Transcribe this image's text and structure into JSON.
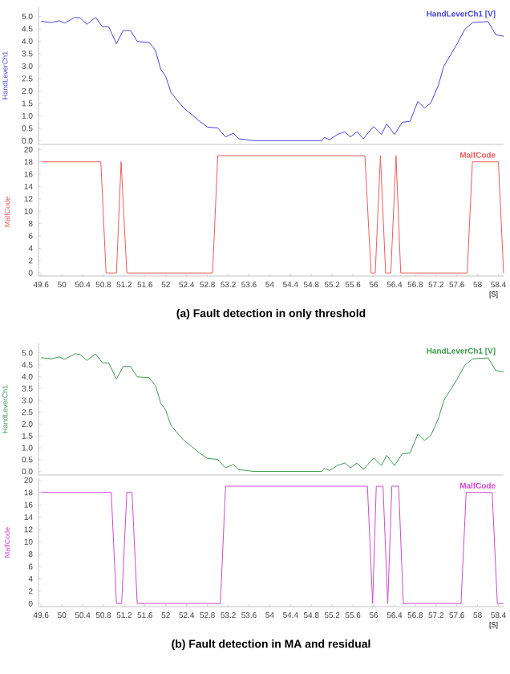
{
  "chart_data": [
    {
      "type": "line",
      "ylabel": "HandLeverCh1",
      "tick_labels": "y",
      "xlim": [
        49.55,
        58.5
      ],
      "ylim": [
        -0.15,
        5.4
      ],
      "yticks": [
        {
          "value": 0,
          "label": "0.0"
        },
        {
          "value": 0.5,
          "label": "0.5"
        },
        {
          "value": 1,
          "label": "1.0"
        },
        {
          "value": 1.5,
          "label": "1.5"
        },
        {
          "value": 2,
          "label": "2.0"
        },
        {
          "value": 2.5,
          "label": "2.5"
        },
        {
          "value": 3,
          "label": "3.0"
        },
        {
          "value": 3.5,
          "label": "3.5"
        },
        {
          "value": 4,
          "label": "4.0"
        },
        {
          "value": 4.5,
          "label": "4.5"
        },
        {
          "value": 5,
          "label": "5.0"
        }
      ],
      "x": [
        49.6,
        49.8,
        49.95,
        50.05,
        50.25,
        50.35,
        50.48,
        50.65,
        50.78,
        50.9,
        51.05,
        51.18,
        51.32,
        51.45,
        51.68,
        51.8,
        51.9,
        52.0,
        52.1,
        52.22,
        52.35,
        52.5,
        52.65,
        52.8,
        53.0,
        53.15,
        53.3,
        53.4,
        53.7,
        55.0,
        55.05,
        55.15,
        55.3,
        55.45,
        55.55,
        55.68,
        55.8,
        56.0,
        56.15,
        56.25,
        56.4,
        56.55,
        56.7,
        56.85,
        56.98,
        57.1,
        57.25,
        57.35,
        57.5,
        57.62,
        57.75,
        57.9,
        58.2,
        58.35,
        58.5
      ],
      "series": [
        {
          "name": "HandLeverCh1 [V]",
          "color": "#4444dd",
          "values": [
            4.8,
            4.75,
            4.83,
            4.73,
            4.96,
            4.94,
            4.68,
            4.96,
            4.58,
            4.58,
            3.9,
            4.43,
            4.43,
            3.99,
            3.95,
            3.63,
            2.89,
            2.57,
            1.94,
            1.62,
            1.31,
            1.05,
            0.78,
            0.55,
            0.51,
            0.15,
            0.3,
            0.08,
            0.0,
            0.0,
            0.13,
            0.04,
            0.25,
            0.36,
            0.15,
            0.36,
            0.08,
            0.57,
            0.25,
            0.68,
            0.25,
            0.74,
            0.78,
            1.58,
            1.31,
            1.52,
            2.26,
            3.0,
            3.52,
            3.95,
            4.47,
            4.75,
            4.79,
            4.26,
            4.2
          ]
        }
      ]
    },
    {
      "type": "line",
      "ylabel": "MalfCode",
      "xlabel": "[S]",
      "annotations": [
        "(a) Fault detection in only threshold"
      ],
      "xlim": [
        49.55,
        58.5
      ],
      "ylim": [
        -0.5,
        20.3
      ],
      "xticks": [
        49.6,
        50,
        50.4,
        50.8,
        51.2,
        51.6,
        52,
        52.4,
        52.8,
        53.2,
        53.6,
        54,
        54.4,
        54.8,
        55.2,
        55.6,
        56,
        56.4,
        56.8,
        57.2,
        57.6,
        58,
        58.4
      ],
      "yticks": [
        0,
        2,
        4,
        6,
        8,
        10,
        12,
        14,
        16,
        18,
        20
      ],
      "x": [
        49.6,
        50.75,
        50.85,
        51.05,
        51.14,
        51.25,
        52.9,
        53.0,
        55.83,
        55.95,
        56.03,
        56.13,
        56.23,
        56.33,
        56.43,
        56.52,
        57.8,
        57.9,
        58.4,
        58.5
      ],
      "series": [
        {
          "name": "MalfCode",
          "color": "#f05a5a",
          "values": [
            18,
            18,
            0,
            0,
            18,
            0,
            0,
            19,
            19,
            0,
            0,
            19,
            0,
            0,
            19,
            0,
            0,
            18,
            18,
            0
          ]
        }
      ]
    },
    {
      "type": "line",
      "ylabel": "HandLeverCh1",
      "tick_labels": "y",
      "xlim": [
        49.55,
        58.5
      ],
      "ylim": [
        -0.15,
        5.4
      ],
      "yticks": [
        {
          "value": 0,
          "label": "0.0"
        },
        {
          "value": 0.5,
          "label": "0.5"
        },
        {
          "value": 1,
          "label": "1.0"
        },
        {
          "value": 1.5,
          "label": "1.5"
        },
        {
          "value": 2,
          "label": "2.0"
        },
        {
          "value": 2.5,
          "label": "2.5"
        },
        {
          "value": 3,
          "label": "3.0"
        },
        {
          "value": 3.5,
          "label": "3.5"
        },
        {
          "value": 4,
          "label": "4.0"
        },
        {
          "value": 4.5,
          "label": "4.5"
        },
        {
          "value": 5,
          "label": "5.0"
        }
      ],
      "x": [
        49.6,
        49.8,
        49.95,
        50.05,
        50.25,
        50.35,
        50.48,
        50.65,
        50.78,
        50.9,
        51.05,
        51.18,
        51.32,
        51.45,
        51.68,
        51.8,
        51.9,
        52.0,
        52.1,
        52.22,
        52.35,
        52.5,
        52.65,
        52.8,
        53.0,
        53.15,
        53.3,
        53.4,
        53.7,
        55.0,
        55.05,
        55.15,
        55.3,
        55.45,
        55.55,
        55.68,
        55.8,
        56.0,
        56.15,
        56.25,
        56.4,
        56.55,
        56.7,
        56.85,
        56.98,
        57.1,
        57.25,
        57.35,
        57.5,
        57.62,
        57.75,
        57.9,
        58.2,
        58.35,
        58.5
      ],
      "series": [
        {
          "name": "HandLeverCh1 [V]",
          "color": "#3c9a4c",
          "values": [
            4.8,
            4.75,
            4.83,
            4.73,
            4.96,
            4.94,
            4.68,
            4.96,
            4.58,
            4.58,
            3.9,
            4.43,
            4.43,
            3.99,
            3.95,
            3.63,
            2.89,
            2.57,
            1.94,
            1.62,
            1.31,
            1.05,
            0.78,
            0.55,
            0.51,
            0.15,
            0.3,
            0.08,
            0.0,
            0.0,
            0.13,
            0.04,
            0.25,
            0.36,
            0.15,
            0.36,
            0.08,
            0.57,
            0.25,
            0.68,
            0.25,
            0.74,
            0.78,
            1.58,
            1.31,
            1.52,
            2.26,
            3.0,
            3.52,
            3.95,
            4.47,
            4.75,
            4.79,
            4.26,
            4.2
          ]
        }
      ]
    },
    {
      "type": "line",
      "ylabel": "MalfCode",
      "xlabel": "[S]",
      "annotations": [
        "(b) Fault detection in MA and residual"
      ],
      "xlim": [
        49.55,
        58.5
      ],
      "ylim": [
        -0.5,
        20.3
      ],
      "xticks": [
        49.6,
        50,
        50.4,
        50.8,
        51.2,
        51.6,
        52,
        52.4,
        52.8,
        53.2,
        53.6,
        54,
        54.4,
        54.8,
        55.2,
        55.6,
        56,
        56.4,
        56.8,
        57.2,
        57.6,
        58,
        58.4
      ],
      "yticks": [
        0,
        2,
        4,
        6,
        8,
        10,
        12,
        14,
        16,
        18,
        20
      ],
      "x": [
        49.6,
        50.95,
        51.05,
        51.15,
        51.25,
        51.35,
        51.45,
        53.05,
        53.15,
        55.88,
        55.98,
        56.05,
        56.18,
        56.27,
        56.35,
        56.48,
        56.57,
        57.68,
        57.78,
        58.28,
        58.38,
        58.5
      ],
      "series": [
        {
          "name": "MalfCode",
          "color": "#d048d0",
          "values": [
            18,
            18,
            0,
            0,
            18,
            18,
            0,
            0,
            19,
            19,
            0,
            19,
            19,
            0,
            19,
            19,
            0,
            0,
            18,
            18,
            0,
            0
          ]
        }
      ]
    }
  ]
}
